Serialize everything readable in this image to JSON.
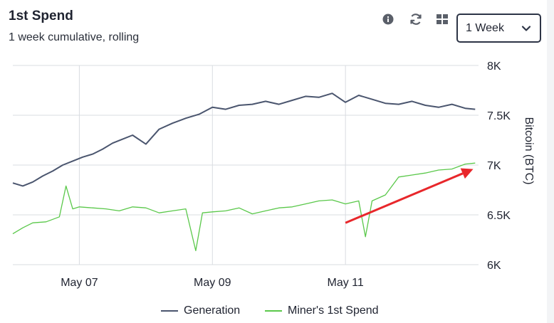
{
  "header": {
    "title": "1st Spend",
    "subtitle": "1 week cumulative, rolling"
  },
  "toolbar": {
    "icons": [
      "info-icon",
      "refresh-icon",
      "grid-icon"
    ],
    "range_select": {
      "selected": "1 Week"
    }
  },
  "colors": {
    "generation": "#4a556e",
    "miners_first_spend": "#5ac84a",
    "annotation_arrow": "#e8272b",
    "grid": "#d9dce1"
  },
  "chart_data": {
    "type": "line",
    "title": "",
    "xlabel": "",
    "ylabel": "Bitcoin (BTC)",
    "x_ticks": [
      "May 07",
      "May 09",
      "May 11"
    ],
    "y_ticks": [
      "6K",
      "6.5K",
      "7K",
      "7.5K",
      "8K"
    ],
    "y_tick_values": [
      6000,
      6500,
      7000,
      7500,
      8000
    ],
    "ylim": [
      6000,
      8000
    ],
    "xlim": [
      0,
      7
    ],
    "x_units": "days since start of window (May 6)",
    "grid": true,
    "legend_position": "bottom",
    "series": [
      {
        "name": "Generation",
        "x": [
          0.0,
          0.15,
          0.3,
          0.45,
          0.6,
          0.75,
          0.9,
          1.05,
          1.2,
          1.35,
          1.5,
          1.65,
          1.8,
          2.0,
          2.2,
          2.4,
          2.6,
          2.8,
          3.0,
          3.2,
          3.4,
          3.6,
          3.8,
          4.0,
          4.2,
          4.4,
          4.6,
          4.8,
          5.0,
          5.2,
          5.4,
          5.6,
          5.8,
          6.0,
          6.2,
          6.4,
          6.6,
          6.8,
          6.95
        ],
        "y": [
          6820,
          6790,
          6830,
          6890,
          6940,
          7000,
          7040,
          7080,
          7110,
          7160,
          7220,
          7260,
          7300,
          7210,
          7360,
          7420,
          7470,
          7510,
          7580,
          7560,
          7600,
          7610,
          7640,
          7610,
          7650,
          7690,
          7680,
          7720,
          7630,
          7700,
          7660,
          7620,
          7610,
          7640,
          7600,
          7580,
          7610,
          7570,
          7560
        ]
      },
      {
        "name": "Miner's 1st Spend",
        "x": [
          0.0,
          0.15,
          0.3,
          0.5,
          0.7,
          0.8,
          0.9,
          1.0,
          1.2,
          1.4,
          1.6,
          1.8,
          2.0,
          2.2,
          2.4,
          2.6,
          2.75,
          2.85,
          3.0,
          3.2,
          3.4,
          3.6,
          3.8,
          4.0,
          4.2,
          4.4,
          4.6,
          4.8,
          5.0,
          5.2,
          5.3,
          5.4,
          5.6,
          5.8,
          6.0,
          6.2,
          6.4,
          6.6,
          6.8,
          6.95
        ],
        "y": [
          6310,
          6370,
          6420,
          6430,
          6480,
          6790,
          6560,
          6580,
          6570,
          6560,
          6540,
          6580,
          6570,
          6520,
          6540,
          6560,
          6140,
          6520,
          6530,
          6540,
          6570,
          6510,
          6540,
          6570,
          6580,
          6610,
          6640,
          6650,
          6610,
          6640,
          6280,
          6640,
          6700,
          6880,
          6900,
          6920,
          6950,
          6960,
          7010,
          7020
        ]
      }
    ],
    "annotations": [
      {
        "type": "arrow",
        "from": [
          5.0,
          6420
        ],
        "to": [
          6.92,
          6960
        ]
      }
    ]
  }
}
